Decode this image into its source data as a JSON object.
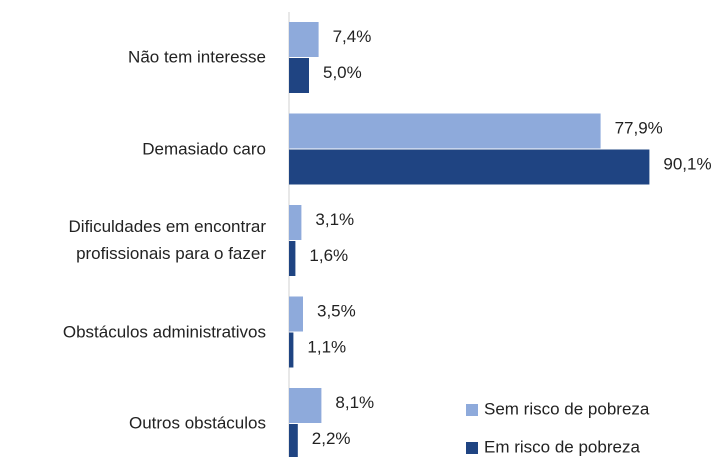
{
  "chart_data": {
    "type": "hbar",
    "categories": [
      "Não tem interesse",
      "Demasiado caro",
      "Dificuldades em encontrar\nprofissionais para o fazer",
      "Obstáculos administrativos",
      "Outros obstáculos"
    ],
    "series": [
      {
        "name": "Sem risco de pobreza",
        "color": "#8eaadb",
        "values": [
          7.4,
          77.9,
          3.1,
          3.5,
          8.1
        ],
        "value_labels": [
          "7,4%",
          "77,9%",
          "3,1%",
          "3,5%",
          "8,1%"
        ]
      },
      {
        "name": "Em risco de pobreza",
        "color": "#1f4482",
        "values": [
          5.0,
          90.1,
          1.6,
          1.1,
          2.2
        ],
        "value_labels": [
          "5,0%",
          "90,1%",
          "1,6%",
          "1,1%",
          "2,2%"
        ]
      }
    ],
    "legend": "bottom-right"
  }
}
